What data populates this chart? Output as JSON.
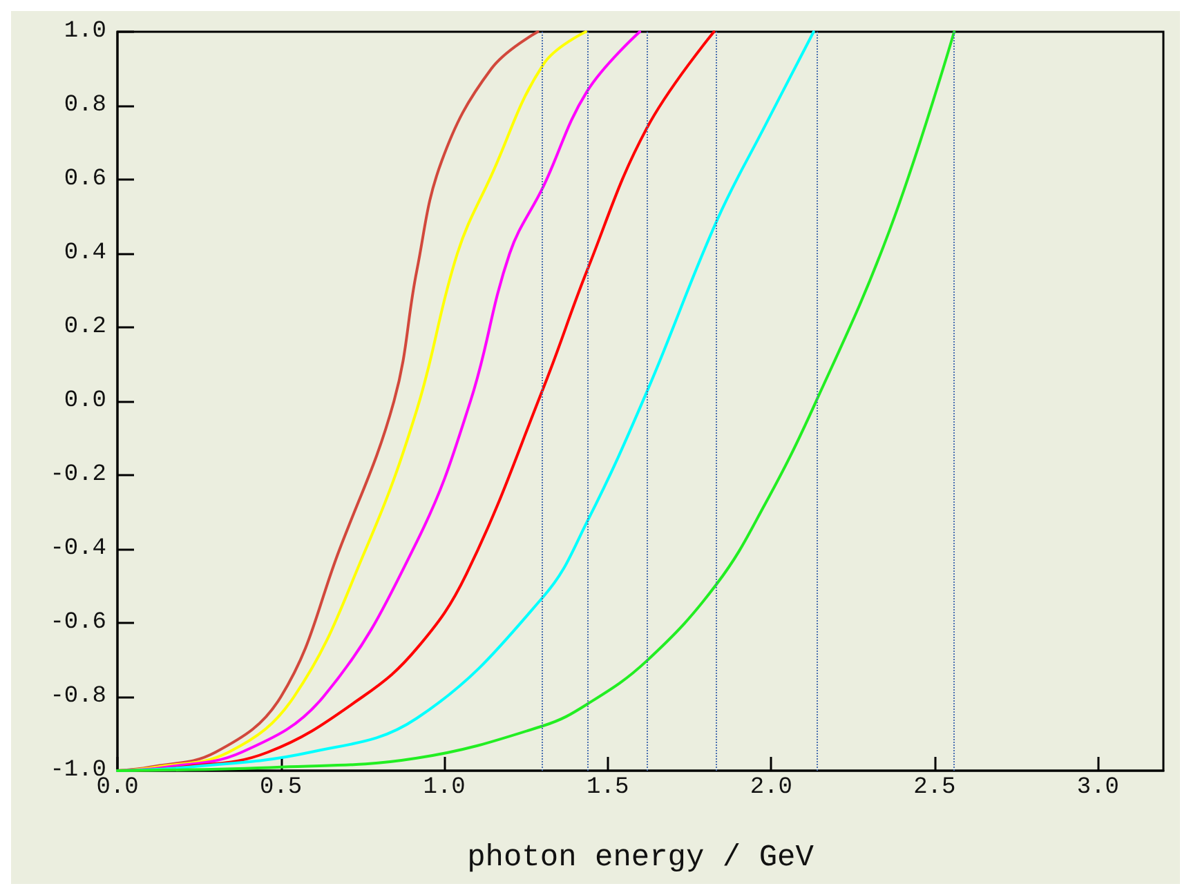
{
  "chart_data": {
    "type": "line",
    "xlabel": "photon energy / GeV",
    "xlim": [
      0,
      3.2
    ],
    "xticks": [
      {
        "value": 0,
        "label": "0.0"
      },
      0.5,
      {
        "value": 1,
        "label": "1.0"
      },
      1.5,
      {
        "value": 2,
        "label": "2.0"
      },
      2.5,
      {
        "value": 3,
        "label": "3.0"
      }
    ],
    "ylim": [
      -1,
      1
    ],
    "yticks": [
      {
        "value": -1,
        "label": "-1.0"
      },
      -0.8,
      -0.6,
      -0.4,
      -0.2,
      {
        "value": 0,
        "label": "0.0"
      },
      0.2,
      0.4,
      0.6,
      0.8,
      {
        "value": 1,
        "label": "1.0"
      }
    ],
    "grid": false,
    "marker": "none",
    "line_style": "solid",
    "series": [
      {
        "color": "#d2483c",
        "x": [
          0,
          0.1,
          0.3,
          0.5,
          0.68,
          0.846,
          0.916,
          0.992,
          1.144,
          1.286
        ],
        "values": [
          -1,
          -0.99,
          -0.95,
          -0.8,
          -0.4,
          0,
          0.354,
          0.65,
          0.9,
          1
        ]
      },
      {
        "color": "#ffff00",
        "x": [
          0,
          0.12,
          0.34,
          0.54,
          0.76,
          0.916,
          1.04,
          1.144,
          1.304,
          1.433
        ],
        "values": [
          -1,
          -0.99,
          -0.95,
          -0.8,
          -0.4,
          -0.023,
          0.4,
          0.611,
          0.913,
          1
        ]
      },
      {
        "color": "#ff00ff",
        "x": [
          0,
          0.15,
          0.38,
          0.63,
          0.916,
          1.08,
          1.2,
          1.304,
          1.437,
          1.598
        ],
        "values": [
          -1,
          -0.99,
          -0.95,
          -0.8,
          -0.38,
          0,
          0.4,
          0.583,
          0.839,
          1
        ]
      },
      {
        "color": "#ff0000",
        "x": [
          0,
          0.2,
          0.46,
          0.75,
          0.916,
          1.068,
          1.304,
          1.437,
          1.619,
          1.825
        ],
        "values": [
          -1,
          -0.99,
          -0.95,
          -0.8,
          -0.669,
          -0.467,
          0.038,
          0.354,
          0.738,
          1
        ]
      },
      {
        "color": "#00ffff",
        "x": [
          0,
          0.22,
          0.59,
          0.916,
          1.304,
          1.437,
          1.619,
          1.834,
          1.981,
          2.13
        ],
        "values": [
          -1,
          -0.99,
          -0.95,
          -0.858,
          -0.528,
          -0.326,
          0.024,
          0.489,
          0.745,
          1
        ]
      },
      {
        "color": "#22ee22",
        "x": [
          0,
          0.5,
          0.916,
          1.304,
          1.437,
          1.619,
          1.834,
          1.981,
          2.133,
          2.362,
          2.56
        ],
        "values": [
          -1,
          -0.99,
          -0.966,
          -0.878,
          -0.82,
          -0.703,
          -0.494,
          -0.279,
          -0.009,
          0.462,
          1
        ]
      }
    ],
    "ref_lines": [
      {
        "axis": "x",
        "value": 1.3,
        "color": "#4a6fb0",
        "line_style": "dotted"
      },
      {
        "axis": "x",
        "value": 1.44,
        "color": "#4a6fb0",
        "line_style": "dotted"
      },
      {
        "axis": "x",
        "value": 1.62,
        "color": "#4a6fb0",
        "line_style": "dotted"
      },
      {
        "axis": "x",
        "value": 1.83,
        "color": "#4a6fb0",
        "line_style": "dotted"
      },
      {
        "axis": "x",
        "value": 2.14,
        "color": "#4a6fb0",
        "line_style": "dotted"
      },
      {
        "axis": "x",
        "value": 2.56,
        "color": "#4a6fb0",
        "line_style": "dotted"
      }
    ]
  }
}
